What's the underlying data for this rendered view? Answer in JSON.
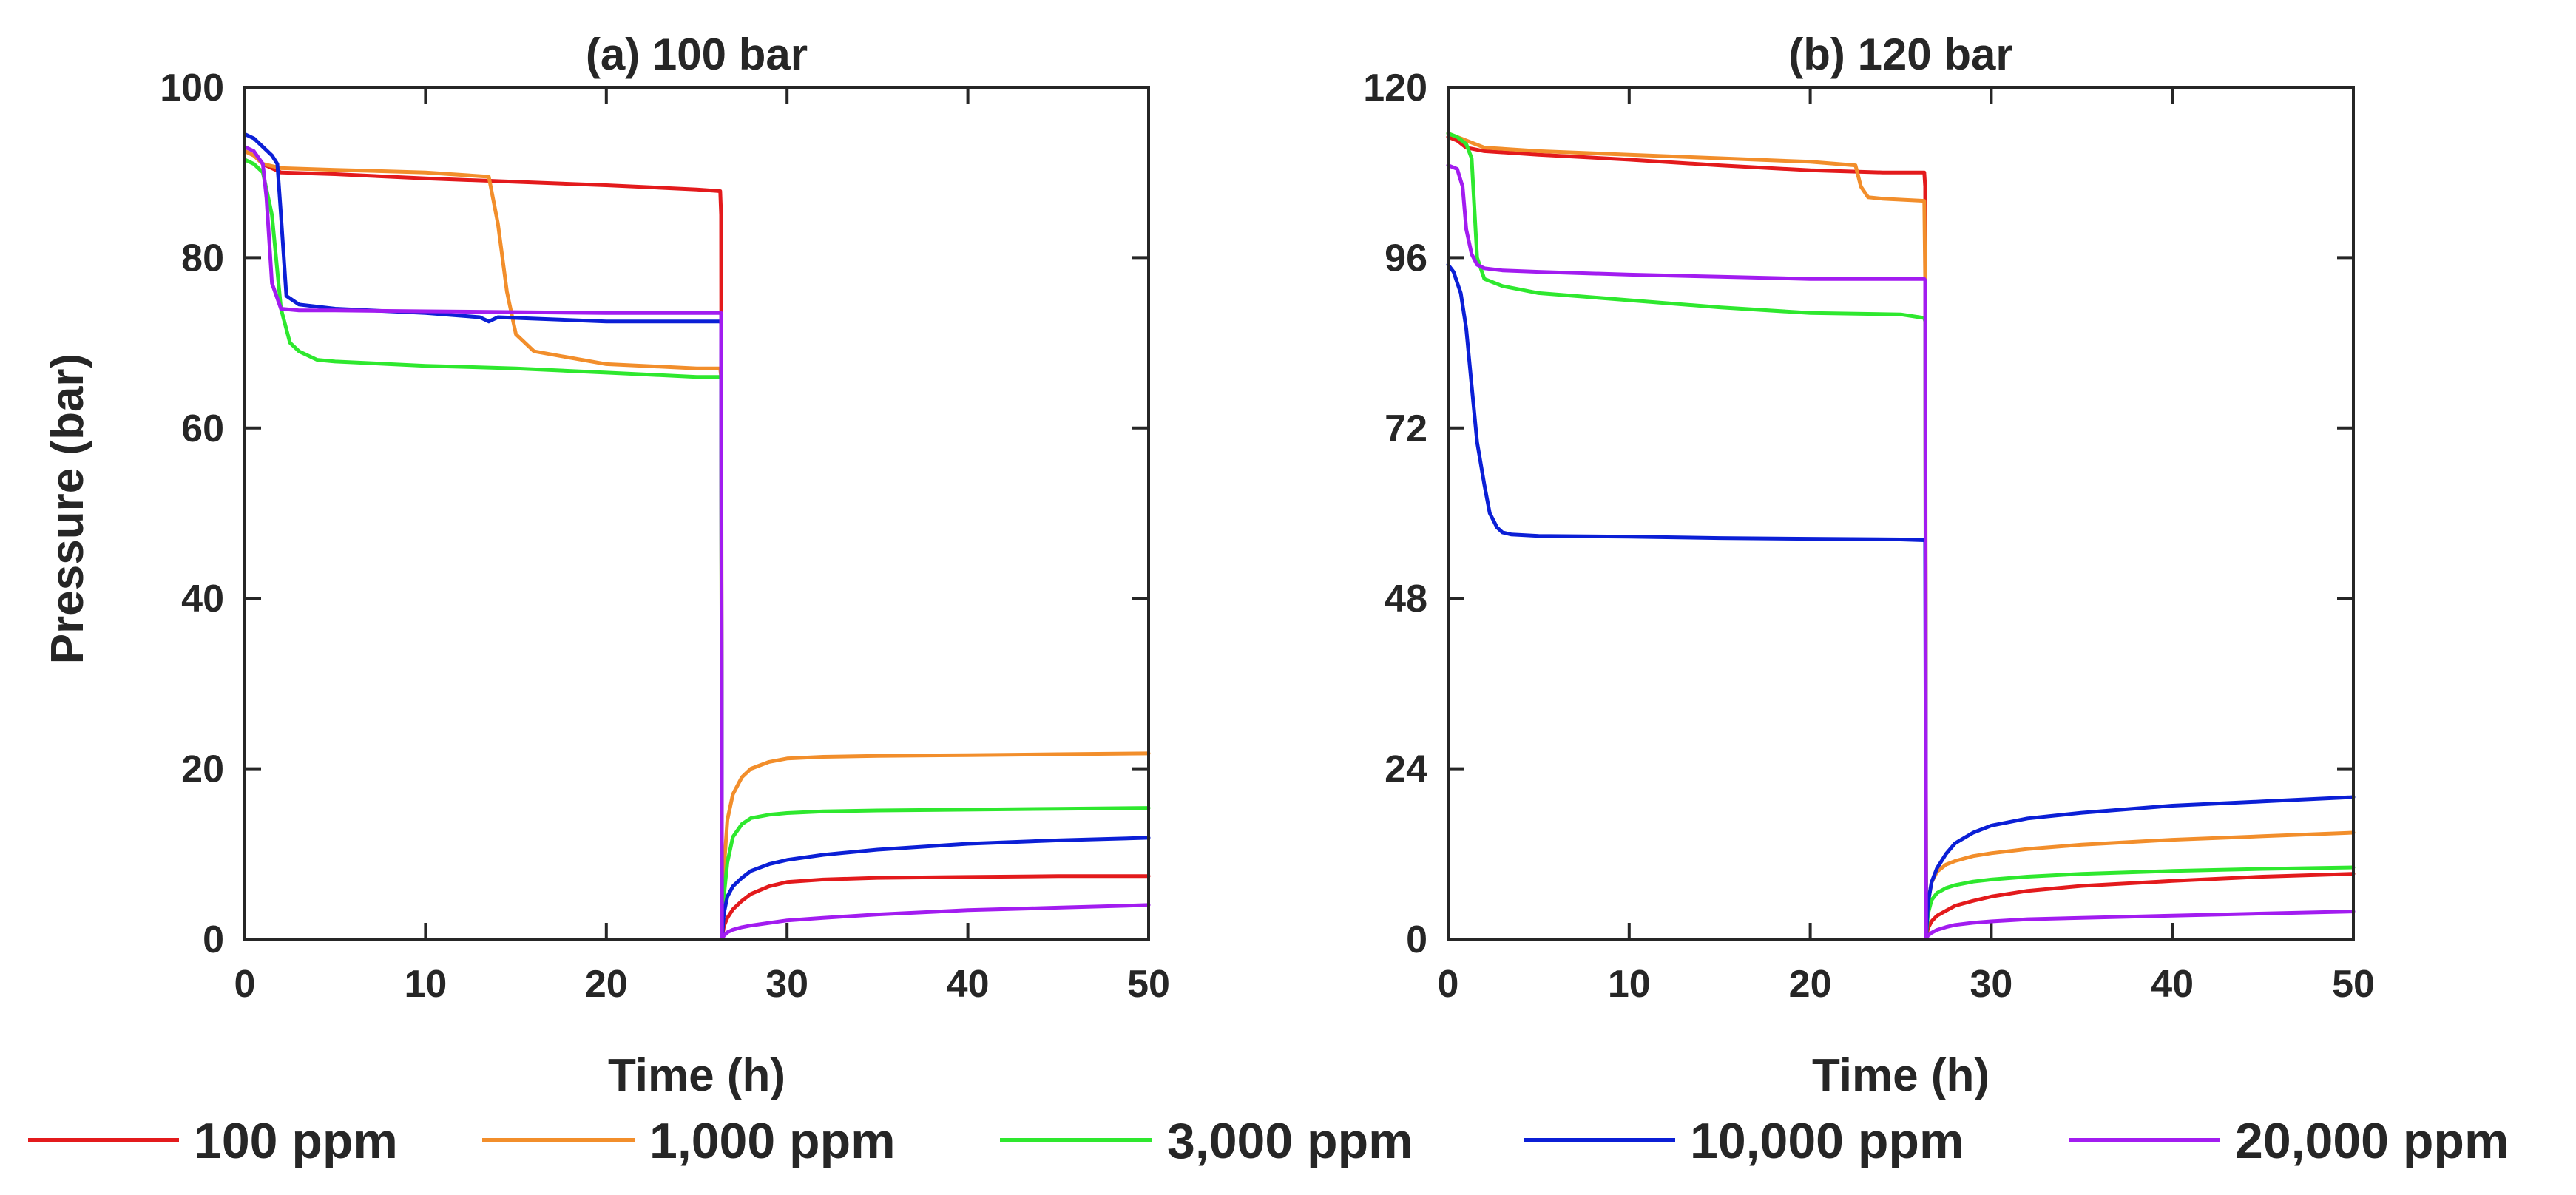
{
  "figure": {
    "legend": [
      {
        "name": "100 ppm",
        "color": "#e31a1c"
      },
      {
        "name": "1,000 ppm",
        "color": "#f28e2b"
      },
      {
        "name": "3,000 ppm",
        "color": "#2ee82e"
      },
      {
        "name": "10,000 ppm",
        "color": "#0b1fd6"
      },
      {
        "name": "20,000 ppm",
        "color": "#a21cf0"
      }
    ]
  },
  "chart_data": [
    {
      "type": "line",
      "title": "(a) 100 bar",
      "xlabel": "Time (h)",
      "ylabel": "Pressure (bar)",
      "xlim": [
        0,
        50
      ],
      "ylim": [
        0,
        100
      ],
      "xticks": [
        0,
        10,
        20,
        30,
        40,
        50
      ],
      "yticks": [
        0,
        20,
        40,
        60,
        80,
        100
      ],
      "grid": false,
      "series": [
        {
          "name": "100 ppm",
          "color": "#e31a1c",
          "x": [
            0,
            0.5,
            1,
            2,
            5,
            10,
            15,
            20,
            25,
            26.3,
            26.35,
            26.4,
            26.5,
            26.7,
            27,
            27.5,
            28,
            29,
            30,
            32,
            35,
            40,
            45,
            50
          ],
          "y": [
            92.5,
            92,
            91,
            90,
            89.8,
            89.3,
            88.9,
            88.5,
            88,
            87.8,
            85,
            0,
            1.5,
            2.5,
            3.5,
            4.5,
            5.3,
            6.2,
            6.7,
            7,
            7.2,
            7.3,
            7.4,
            7.4
          ]
        },
        {
          "name": "1,000 ppm",
          "color": "#f28e2b",
          "x": [
            0,
            0.5,
            1,
            2,
            5,
            10,
            13.5,
            14,
            14.5,
            15,
            16,
            20,
            25,
            26.3,
            26.35,
            26.4,
            26.5,
            26.7,
            27,
            27.5,
            28,
            29,
            30,
            32,
            35,
            40,
            45,
            50
          ],
          "y": [
            92.5,
            92,
            91,
            90.5,
            90.3,
            90,
            89.5,
            84,
            76,
            71,
            69,
            67.5,
            67,
            67,
            66,
            0,
            8,
            14,
            17,
            19,
            20,
            20.8,
            21.2,
            21.4,
            21.5,
            21.6,
            21.7,
            21.8
          ]
        },
        {
          "name": "3,000 ppm",
          "color": "#2ee82e",
          "x": [
            0,
            0.5,
            1,
            1.5,
            2,
            2.5,
            3,
            4,
            5,
            10,
            15,
            20,
            25,
            26.3,
            26.35,
            26.4,
            26.5,
            26.7,
            27,
            27.5,
            28,
            29,
            30,
            32,
            35,
            40,
            45,
            50
          ],
          "y": [
            91.5,
            91,
            90,
            85,
            74,
            70,
            69,
            68,
            67.8,
            67.3,
            67,
            66.5,
            66,
            66,
            65.8,
            0,
            5,
            9,
            12,
            13.5,
            14.2,
            14.6,
            14.8,
            15,
            15.1,
            15.2,
            15.3,
            15.4
          ]
        },
        {
          "name": "10,000 ppm",
          "color": "#0b1fd6",
          "x": [
            0,
            0.5,
            1,
            1.5,
            1.8,
            2,
            2.3,
            3,
            5,
            10,
            13,
            13.5,
            14,
            20,
            25,
            26.3,
            26.35,
            26.4,
            26.5,
            26.7,
            27,
            27.5,
            28,
            29,
            30,
            32,
            35,
            40,
            45,
            50
          ],
          "y": [
            94.5,
            94,
            93,
            92,
            91,
            85,
            75.5,
            74.5,
            74,
            73.5,
            73,
            72.5,
            73,
            72.5,
            72.5,
            72.5,
            72.3,
            0,
            3,
            5,
            6.2,
            7.2,
            8,
            8.8,
            9.3,
            9.9,
            10.5,
            11.2,
            11.6,
            11.9
          ]
        },
        {
          "name": "20,000 ppm",
          "color": "#a21cf0",
          "x": [
            0,
            0.5,
            1,
            1.2,
            1.5,
            2,
            3,
            5,
            10,
            15,
            20,
            25,
            26.3,
            26.35,
            26.4,
            26.5,
            26.7,
            27,
            27.5,
            28,
            29,
            30,
            32,
            35,
            40,
            45,
            50
          ],
          "y": [
            93,
            92.5,
            91,
            87,
            77,
            74,
            73.8,
            73.8,
            73.7,
            73.6,
            73.5,
            73.5,
            73.5,
            73.5,
            0,
            0.4,
            0.8,
            1.1,
            1.4,
            1.6,
            1.9,
            2.2,
            2.5,
            2.9,
            3.4,
            3.7,
            4
          ]
        }
      ]
    },
    {
      "type": "line",
      "title": "(b) 120 bar",
      "xlabel": "Time (h)",
      "ylabel": "",
      "xlim": [
        0,
        50
      ],
      "ylim": [
        0,
        120
      ],
      "xticks": [
        0,
        10,
        20,
        30,
        40,
        50
      ],
      "yticks": [
        0,
        24,
        48,
        72,
        96,
        120
      ],
      "grid": false,
      "series": [
        {
          "name": "100 ppm",
          "color": "#e31a1c",
          "x": [
            0,
            0.5,
            1,
            2,
            5,
            10,
            15,
            20,
            24,
            26.3,
            26.35,
            26.4,
            26.5,
            26.7,
            27,
            27.5,
            28,
            29,
            30,
            32,
            35,
            40,
            45,
            50
          ],
          "y": [
            113,
            112.5,
            111.5,
            111,
            110.5,
            109.8,
            109,
            108.3,
            108,
            108,
            106,
            0,
            1.5,
            2.5,
            3.3,
            4,
            4.7,
            5.4,
            6,
            6.8,
            7.5,
            8.2,
            8.8,
            9.2
          ]
        },
        {
          "name": "1,000 ppm",
          "color": "#f28e2b",
          "x": [
            0,
            0.5,
            1,
            2,
            5,
            10,
            15,
            20,
            22.5,
            22.8,
            23.2,
            24,
            26.3,
            26.35,
            26.4,
            26.5,
            26.7,
            27,
            27.5,
            28,
            29,
            30,
            32,
            35,
            40,
            45,
            50
          ],
          "y": [
            113.5,
            113,
            112.5,
            111.5,
            111,
            110.5,
            110,
            109.5,
            109,
            106,
            104.5,
            104.3,
            104,
            93,
            0,
            5,
            8,
            9.5,
            10.5,
            11,
            11.7,
            12.1,
            12.7,
            13.3,
            14,
            14.5,
            15
          ]
        },
        {
          "name": "3,000 ppm",
          "color": "#2ee82e",
          "x": [
            0,
            0.5,
            1,
            1.3,
            1.6,
            2,
            3,
            5,
            10,
            15,
            20,
            25,
            26.3,
            26.35,
            26.4,
            26.5,
            26.7,
            27,
            27.5,
            28,
            29,
            30,
            32,
            35,
            40,
            45,
            50
          ],
          "y": [
            113.5,
            113,
            112,
            110,
            96,
            93,
            92,
            91,
            90,
            89,
            88.2,
            88,
            87.5,
            87,
            0,
            3.5,
            5.5,
            6.5,
            7.2,
            7.6,
            8.1,
            8.4,
            8.8,
            9.2,
            9.6,
            9.9,
            10.1
          ]
        },
        {
          "name": "10,000 ppm",
          "color": "#0b1fd6",
          "x": [
            0,
            0.3,
            0.7,
            1,
            1.3,
            1.6,
            2,
            2.3,
            2.7,
            3,
            3.5,
            5,
            10,
            15,
            20,
            25,
            26.3,
            26.35,
            26.4,
            26.5,
            26.7,
            27,
            27.5,
            28,
            29,
            30,
            32,
            35,
            40,
            45,
            50
          ],
          "y": [
            95,
            94,
            91,
            86,
            78,
            70,
            64,
            60,
            58,
            57.3,
            57,
            56.8,
            56.7,
            56.5,
            56.4,
            56.3,
            56.2,
            56,
            0,
            5,
            8,
            10,
            12,
            13.5,
            15,
            16,
            17,
            17.8,
            18.8,
            19.4,
            20
          ]
        },
        {
          "name": "20,000 ppm",
          "color": "#a21cf0",
          "x": [
            0,
            0.5,
            0.8,
            1,
            1.3,
            1.6,
            2,
            3,
            5,
            10,
            15,
            20,
            25,
            26.3,
            26.35,
            26.4,
            26.5,
            26.7,
            27,
            27.5,
            28,
            29,
            30,
            32,
            35,
            40,
            45,
            50
          ],
          "y": [
            109,
            108.5,
            106,
            100,
            96.5,
            95,
            94.5,
            94.2,
            94,
            93.6,
            93.3,
            93,
            93,
            93,
            92.8,
            0,
            0.5,
            0.9,
            1.3,
            1.7,
            2,
            2.3,
            2.5,
            2.8,
            3,
            3.3,
            3.6,
            3.9
          ]
        }
      ]
    }
  ]
}
